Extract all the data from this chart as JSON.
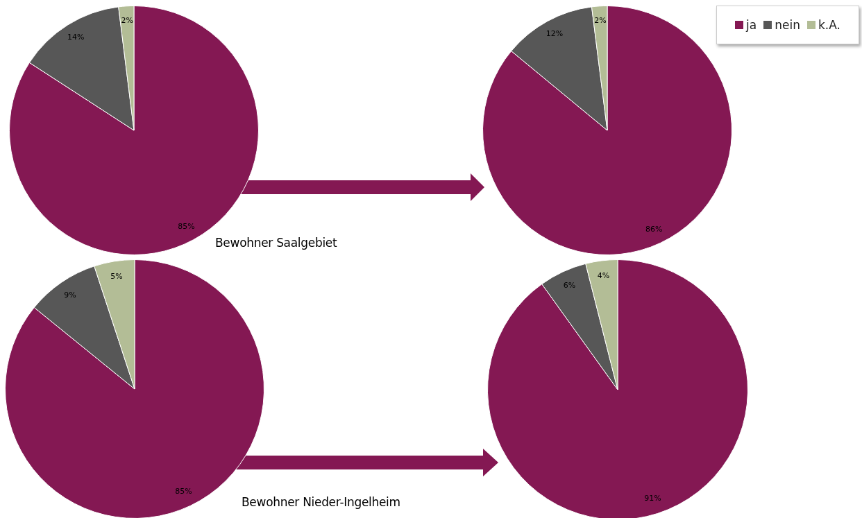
{
  "chart_data": [
    {
      "type": "pie",
      "categories": [
        null,
        null,
        null
      ],
      "values": [
        85,
        14,
        2
      ],
      "colors": [
        "#841853",
        "#575757",
        "#b3bd96"
      ],
      "value_labels": [
        "85%",
        "14%",
        "2%"
      ],
      "annotations": [
        "Bewohner Saalgebiet"
      ]
    },
    {
      "type": "pie",
      "categories": [
        "ja",
        "nein",
        "k.A."
      ],
      "values": [
        86,
        12,
        2
      ],
      "colors": [
        "#841853",
        "#575757",
        "#b3bd96"
      ],
      "value_labels": [
        "86%",
        "12%",
        "2%"
      ],
      "legend": "top right"
    },
    {
      "type": "pie",
      "categories": [
        null,
        null,
        null
      ],
      "values": [
        85,
        9,
        5
      ],
      "colors": [
        "#841853",
        "#575757",
        "#b3bd96"
      ],
      "value_labels": [
        "85%",
        "9%",
        "5%"
      ],
      "annotations": [
        "Bewohner Nieder-Ingelheim"
      ]
    },
    {
      "type": "pie",
      "categories": [
        null,
        null,
        null
      ],
      "values": [
        91,
        6,
        4
      ],
      "colors": [
        "#841853",
        "#575757",
        "#b3bd96"
      ],
      "value_labels": [
        "91%",
        "6%",
        "4%"
      ]
    }
  ]
}
